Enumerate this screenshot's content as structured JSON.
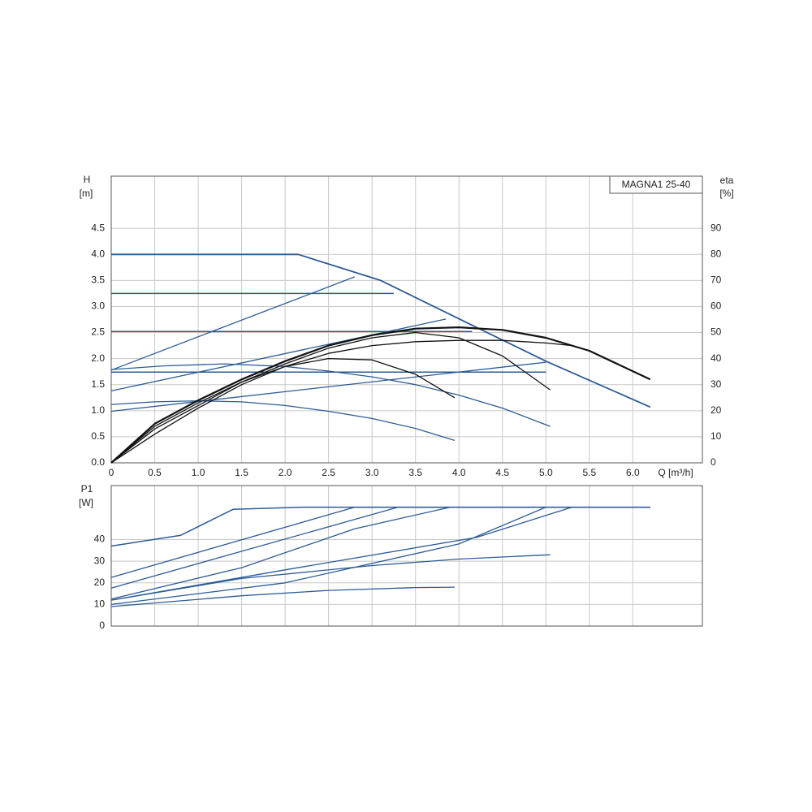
{
  "chart_data": [
    {
      "type": "line",
      "annotation": "MAGNA1 25-40",
      "y_label": "H",
      "y_unit": "[m]",
      "y2_label": "eta",
      "y2_unit": "[%]",
      "x_label": "Q [m³/h]",
      "xlim": [
        0,
        6.8
      ],
      "xticks": [
        0,
        0.5,
        {
          "value": 1,
          "label": "1.0"
        },
        1.5,
        {
          "value": 2,
          "label": "2.0"
        },
        2.5,
        {
          "value": 3,
          "label": "3.0"
        },
        3.5,
        {
          "value": 4,
          "label": "4.0"
        },
        4.5,
        {
          "value": 5,
          "label": "5.0"
        },
        5.5,
        {
          "value": 6,
          "label": "6.0"
        }
      ],
      "ylim": [
        0,
        5.5
      ],
      "yticks": [
        {
          "value": 0,
          "label": "0.0"
        },
        0.5,
        {
          "value": 1,
          "label": "1.0"
        },
        1.5,
        {
          "value": 2,
          "label": "2.0"
        },
        2.5,
        {
          "value": 3,
          "label": "3.0"
        },
        3.5,
        {
          "value": 4,
          "label": "4.0"
        },
        4.5
      ],
      "y2lim": [
        0,
        110
      ],
      "y2ticks": [
        0,
        10,
        20,
        30,
        40,
        50,
        60,
        70,
        80,
        90
      ],
      "grid": true,
      "series": [
        {
          "color": "#2c5b96",
          "width": 1.8,
          "x": [
            0,
            2.15,
            3.1,
            4.2,
            5.0,
            6.2
          ],
          "values": [
            4.0,
            4.0,
            3.5,
            2.6,
            1.95,
            1.07
          ]
        },
        {
          "color": "#2c5b96",
          "width": 1.5,
          "x": [
            0,
            3.25
          ],
          "values": [
            3.25,
            3.25
          ]
        },
        {
          "color": "#2c5b96",
          "width": 1.5,
          "x": [
            0,
            4.15
          ],
          "values": [
            2.52,
            2.52
          ]
        },
        {
          "color": "#2c5b96",
          "width": 1.5,
          "x": [
            0,
            5.0
          ],
          "values": [
            1.74,
            1.74
          ]
        },
        {
          "color": "#2c5b96",
          "width": 1.3,
          "x": [
            0,
            2.8
          ],
          "values": [
            1.78,
            3.57
          ]
        },
        {
          "color": "#2c5b96",
          "width": 1.3,
          "x": [
            0,
            3.85
          ],
          "values": [
            1.38,
            2.76
          ]
        },
        {
          "color": "#2c5b96",
          "width": 1.3,
          "x": [
            0,
            5.0
          ],
          "values": [
            0.99,
            1.93
          ]
        },
        {
          "color": "#2c5b96",
          "width": 1.3,
          "x": [
            0,
            0.6,
            1.3,
            2.0,
            2.5,
            3.0,
            3.5,
            4.0,
            4.5,
            5.05
          ],
          "values": [
            1.79,
            1.86,
            1.9,
            1.85,
            1.76,
            1.65,
            1.5,
            1.3,
            1.05,
            0.7
          ]
        },
        {
          "color": "#2c5b96",
          "width": 1.3,
          "x": [
            0,
            0.5,
            1.0,
            1.5,
            2.0,
            2.5,
            3.0,
            3.5,
            3.95
          ],
          "values": [
            1.12,
            1.17,
            1.19,
            1.17,
            1.1,
            0.99,
            0.85,
            0.66,
            0.43
          ]
        },
        {
          "color": "#111111",
          "width": 2.2,
          "axis": "y2",
          "x": [
            0,
            0.5,
            1.0,
            1.5,
            2.0,
            2.5,
            3.0,
            3.5,
            4.0,
            4.5,
            5.0,
            5.5,
            6.2
          ],
          "values": [
            0,
            15,
            24,
            32,
            39,
            45,
            49,
            51.5,
            52,
            51,
            48,
            43,
            32
          ]
        },
        {
          "color": "#111111",
          "width": 1.3,
          "axis": "y2",
          "x": [
            0,
            0.5,
            1.0,
            1.5,
            2.0,
            2.5,
            3.0,
            3.5,
            4.0,
            4.5,
            5.0,
            5.3
          ],
          "values": [
            0,
            14,
            23,
            31,
            37,
            42,
            45,
            46.5,
            47,
            47,
            46,
            45
          ]
        },
        {
          "color": "#111111",
          "width": 1.3,
          "axis": "y2",
          "x": [
            0,
            0.5,
            1.0,
            1.5,
            2.0,
            2.5,
            3.0,
            3.5,
            4.0,
            4.5,
            5.05
          ],
          "values": [
            0,
            13,
            22,
            31,
            38,
            44,
            48,
            50,
            48,
            41,
            28
          ]
        },
        {
          "color": "#111111",
          "width": 1.3,
          "axis": "y2",
          "x": [
            0,
            0.5,
            1.0,
            1.5,
            2.0,
            2.5,
            3.0,
            3.5,
            3.95
          ],
          "values": [
            0,
            11,
            21,
            30,
            37,
            40,
            39.5,
            34,
            25
          ]
        }
      ]
    },
    {
      "type": "line",
      "y_label": "P1",
      "y_unit": "[W]",
      "xlim": [
        0,
        6.8
      ],
      "ylim": [
        0,
        65
      ],
      "yticks": [
        0,
        10,
        20,
        30,
        40
      ],
      "grid": true,
      "series": [
        {
          "color": "#2c5b96",
          "width": 1.5,
          "x": [
            0,
            0.8,
            1.4,
            2.2,
            6.2
          ],
          "values": [
            37,
            42,
            54,
            55,
            55
          ]
        },
        {
          "color": "#2c5b96",
          "width": 1.3,
          "x": [
            0,
            2.8,
            6.2
          ],
          "values": [
            22.5,
            55,
            55
          ]
        },
        {
          "color": "#2c5b96",
          "width": 1.3,
          "x": [
            0,
            3.3,
            6.2
          ],
          "values": [
            17.6,
            55,
            55
          ]
        },
        {
          "color": "#2c5b96",
          "width": 1.3,
          "x": [
            0,
            1.5,
            2.8,
            3.9,
            6.2
          ],
          "values": [
            12.5,
            27,
            45,
            55,
            55
          ]
        },
        {
          "color": "#2c5b96",
          "width": 1.3,
          "x": [
            0,
            2.0,
            4.2,
            5.3
          ],
          "values": [
            12,
            26,
            41,
            55
          ]
        },
        {
          "color": "#2c5b96",
          "width": 1.3,
          "x": [
            0,
            2.0,
            4.0,
            5.0
          ],
          "values": [
            10,
            20,
            38,
            55
          ]
        },
        {
          "color": "#2c5b96",
          "width": 1.3,
          "x": [
            0,
            1.5,
            3.0,
            4.0,
            5.05
          ],
          "values": [
            12,
            22,
            28,
            31,
            33
          ]
        },
        {
          "color": "#2c5b96",
          "width": 1.3,
          "x": [
            0,
            1.5,
            2.5,
            3.5,
            3.95
          ],
          "values": [
            9,
            14,
            16.5,
            17.8,
            18
          ]
        }
      ]
    }
  ]
}
